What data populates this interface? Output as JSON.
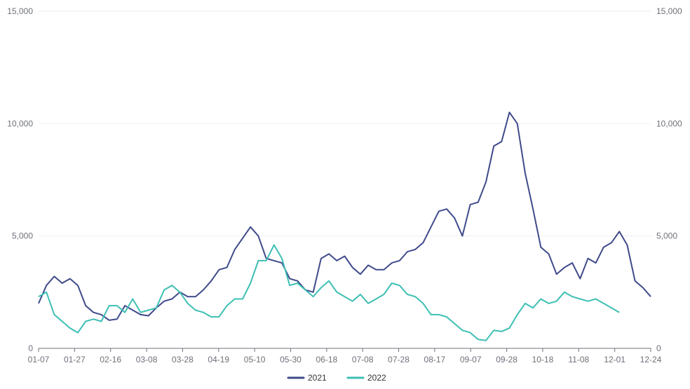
{
  "chart_data": {
    "type": "line",
    "title": "",
    "xlabel": "",
    "ylabel": "",
    "ylim": [
      0,
      15000
    ],
    "y_ticks_left": [
      "0",
      "5,000",
      "10,000",
      "15,000"
    ],
    "y_ticks_right": [
      "0",
      "5,000",
      "10,000",
      "15,000"
    ],
    "x_ticks": [
      "01-07",
      "01-27",
      "02-16",
      "03-08",
      "03-28",
      "04-19",
      "05-10",
      "05-30",
      "06-18",
      "07-08",
      "07-28",
      "08-17",
      "09-07",
      "09-28",
      "10-18",
      "11-08",
      "12-01",
      "12-24"
    ],
    "grid": true,
    "legend_position": "bottom-center",
    "series": [
      {
        "name": "2021",
        "color": "#3f4a8a",
        "values": [
          2000,
          2800,
          3200,
          2900,
          3100,
          2800,
          1900,
          1600,
          1500,
          1250,
          1300,
          1900,
          1700,
          1500,
          1450,
          1800,
          2100,
          2200,
          2500,
          2300,
          2300,
          2600,
          3000,
          3500,
          3600,
          4400,
          4900,
          5400,
          5000,
          4000,
          3900,
          3800,
          3100,
          3000,
          2600,
          2500,
          4000,
          4200,
          3900,
          4100,
          3600,
          3300,
          3700,
          3500,
          3500,
          3800,
          3900,
          4300,
          4400,
          4700,
          5400,
          6100,
          6200,
          5800,
          5000,
          6400,
          6500,
          7400,
          9000,
          9200,
          10500,
          10000,
          7800,
          6200,
          4500,
          4200,
          3300,
          3600,
          3800,
          3100,
          4000,
          3800,
          4500,
          4700,
          5200,
          4600,
          3000,
          2700,
          2300
        ],
        "values_2022": []
      },
      {
        "name": "2022",
        "color": "#3dbfb4",
        "values": [
          2300,
          2500,
          1500,
          1200,
          900,
          700,
          1200,
          1300,
          1200,
          1900,
          1900,
          1600,
          2200,
          1600,
          1700,
          1800,
          2600,
          2800,
          2500,
          2000,
          1700,
          1600,
          1400,
          1400,
          1900,
          2200,
          2200,
          2900,
          3900,
          3900,
          4600,
          4000,
          2800,
          2900,
          2600,
          2300,
          2700,
          3000,
          2500,
          2300,
          2100,
          2400,
          2000,
          2200,
          2400,
          2900,
          2800,
          2400,
          2300,
          2000,
          1500,
          1500,
          1400,
          1100,
          800,
          700,
          400,
          350,
          800,
          750,
          900,
          1500,
          2000,
          1800,
          2200,
          2000,
          2100,
          2500,
          2300,
          2200,
          2100,
          2200,
          2000,
          1800,
          1600
        ]
      }
    ]
  }
}
